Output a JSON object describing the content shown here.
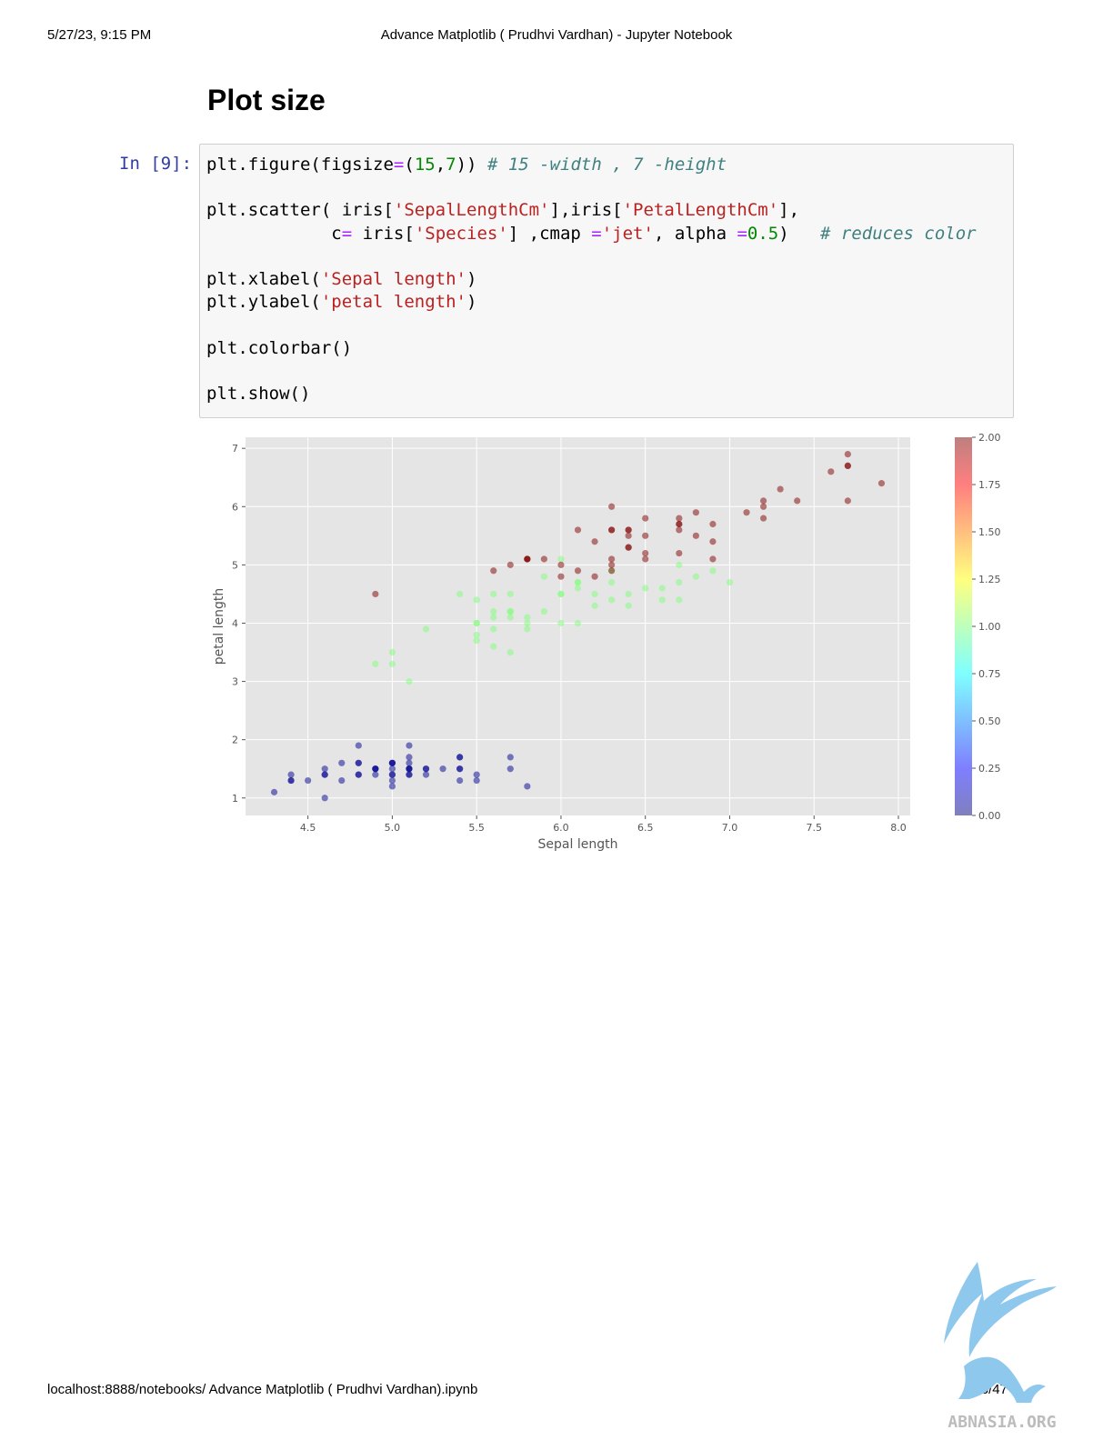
{
  "print_header": {
    "datetime": "5/27/23, 9:15 PM",
    "title": "Advance Matplotlib ( Prudhvi Vardhan) - Jupyter Notebook"
  },
  "section_heading": "Plot size",
  "cell": {
    "prompt": "In [9]:",
    "code": {
      "l1_a": "plt.figure(figsize",
      "l1_eq": "=",
      "l1_b": "(",
      "l1_n1": "15",
      "l1_c": ",",
      "l1_n2": "7",
      "l1_d": ")) ",
      "l1_cm": "# 15 -width , 7 -height",
      "l2_a": "plt.scatter( iris[",
      "l2_s1": "'SepalLengthCm'",
      "l2_b": "],iris[",
      "l2_s2": "'PetalLengthCm'",
      "l2_c": "],",
      "l3_a": "            c",
      "l3_eq": "=",
      "l3_b": " iris[",
      "l3_s1": "'Species'",
      "l3_c": "] ,cmap ",
      "l3_eq2": "=",
      "l3_s2": "'jet'",
      "l3_d": ", alpha ",
      "l3_eq3": "=",
      "l3_n": "0.5",
      "l3_e": ")   ",
      "l3_cm": "# reduces color",
      "l4_a": "plt.xlabel(",
      "l4_s": "'Sepal length'",
      "l4_b": ")",
      "l5_a": "plt.ylabel(",
      "l5_s": "'petal length'",
      "l5_b": ")",
      "l6": "plt.colorbar()",
      "l7": "plt.show()"
    }
  },
  "chart_data": {
    "type": "scatter",
    "title": "",
    "xlabel": "Sepal length",
    "ylabel": "petal length",
    "xlim": [
      4.13,
      8.07
    ],
    "ylim": [
      0.7,
      7.19
    ],
    "xticks": [
      "4.5",
      "5.0",
      "5.5",
      "6.0",
      "6.5",
      "7.0",
      "7.5",
      "8.0"
    ],
    "yticks": [
      "1",
      "2",
      "3",
      "4",
      "5",
      "6",
      "7"
    ],
    "grid": true,
    "style": "ggplot",
    "cmap": "jet",
    "alpha": 0.5,
    "colorbar": {
      "min": 0.0,
      "max": 2.0,
      "ticks": [
        "0.00",
        "0.25",
        "0.50",
        "0.75",
        "1.00",
        "1.25",
        "1.50",
        "1.75",
        "2.00"
      ]
    },
    "colors": {
      "species_0": "#00008f",
      "species_1": "#7dff7a",
      "species_2": "#800000",
      "axes_bg": "#e5e5e5",
      "grid": "#ffffff"
    },
    "series": [
      {
        "species": 0,
        "x": [
          5.1,
          4.9,
          4.7,
          4.6,
          5.0,
          5.4,
          4.6,
          5.0,
          4.4,
          4.9,
          5.4,
          4.8,
          4.8,
          4.3,
          5.8,
          5.7,
          5.4,
          5.1,
          5.7,
          5.1,
          5.4,
          5.1,
          4.6,
          5.1,
          4.8,
          5.0,
          5.0,
          5.2,
          5.2,
          4.7,
          4.8,
          5.4,
          5.2,
          5.5,
          4.9,
          5.0,
          5.5,
          4.9,
          4.4,
          5.1,
          5.0,
          4.5,
          4.4,
          5.0,
          5.1,
          4.8,
          5.1,
          4.6,
          5.3,
          5.0
        ],
        "y": [
          1.4,
          1.4,
          1.3,
          1.5,
          1.4,
          1.7,
          1.4,
          1.5,
          1.4,
          1.5,
          1.5,
          1.6,
          1.4,
          1.1,
          1.2,
          1.5,
          1.3,
          1.4,
          1.7,
          1.5,
          1.7,
          1.5,
          1.0,
          1.7,
          1.9,
          1.6,
          1.6,
          1.5,
          1.4,
          1.6,
          1.6,
          1.5,
          1.5,
          1.4,
          1.5,
          1.2,
          1.3,
          1.5,
          1.3,
          1.5,
          1.3,
          1.3,
          1.3,
          1.6,
          1.9,
          1.4,
          1.6,
          1.4,
          1.5,
          1.4
        ]
      },
      {
        "species": 1,
        "x": [
          7.0,
          6.4,
          6.9,
          5.5,
          6.5,
          5.7,
          6.3,
          4.9,
          6.6,
          5.2,
          5.0,
          5.9,
          6.0,
          6.1,
          5.6,
          6.7,
          5.6,
          5.8,
          6.2,
          5.6,
          5.9,
          6.1,
          6.3,
          6.1,
          6.4,
          6.6,
          6.8,
          6.7,
          6.0,
          5.7,
          5.5,
          5.5,
          5.8,
          6.0,
          5.4,
          6.0,
          6.7,
          6.3,
          5.6,
          5.5,
          5.5,
          6.1,
          5.8,
          5.0,
          5.6,
          5.7,
          5.7,
          6.2,
          5.1,
          5.7
        ],
        "y": [
          4.7,
          4.5,
          4.9,
          4.0,
          4.6,
          4.5,
          4.7,
          3.3,
          4.6,
          3.9,
          3.5,
          4.2,
          4.0,
          4.7,
          3.6,
          4.4,
          4.5,
          4.1,
          4.5,
          3.9,
          4.8,
          4.0,
          4.9,
          4.7,
          4.3,
          4.4,
          4.8,
          5.0,
          4.5,
          3.5,
          3.8,
          3.7,
          3.9,
          5.1,
          4.5,
          4.5,
          4.7,
          4.4,
          4.1,
          4.0,
          4.4,
          4.6,
          4.0,
          3.3,
          4.2,
          4.2,
          4.2,
          4.3,
          3.0,
          4.1
        ]
      },
      {
        "species": 2,
        "x": [
          6.3,
          5.8,
          7.1,
          6.3,
          6.5,
          7.6,
          4.9,
          7.3,
          6.7,
          7.2,
          6.5,
          6.4,
          6.8,
          5.7,
          5.8,
          6.4,
          6.5,
          7.7,
          7.7,
          6.0,
          6.9,
          5.6,
          7.7,
          6.3,
          6.7,
          7.2,
          6.2,
          6.1,
          6.4,
          7.2,
          7.4,
          7.9,
          6.4,
          6.3,
          6.1,
          7.7,
          6.3,
          6.4,
          6.0,
          6.9,
          6.7,
          6.9,
          5.8,
          6.8,
          6.7,
          6.7,
          6.3,
          6.5,
          6.2,
          5.9
        ],
        "y": [
          6.0,
          5.1,
          5.9,
          5.6,
          5.8,
          6.6,
          4.5,
          6.3,
          5.8,
          6.1,
          5.1,
          5.3,
          5.5,
          5.0,
          5.1,
          5.3,
          5.5,
          6.7,
          6.9,
          5.0,
          5.7,
          4.9,
          6.7,
          4.9,
          5.7,
          6.0,
          4.8,
          4.9,
          5.6,
          5.8,
          6.1,
          6.4,
          5.6,
          5.1,
          5.6,
          6.1,
          5.6,
          5.5,
          4.8,
          5.4,
          5.6,
          5.1,
          5.1,
          5.9,
          5.7,
          5.2,
          5.0,
          5.2,
          5.4,
          5.1
        ]
      }
    ]
  },
  "print_footer": {
    "url": "localhost:8888/notebooks/ Advance Matplotlib ( Prudhvi Vardhan).ipynb",
    "page": "6/47"
  },
  "watermark": {
    "text": "ABNASIA.ORG",
    "color": "#7fbde6"
  }
}
